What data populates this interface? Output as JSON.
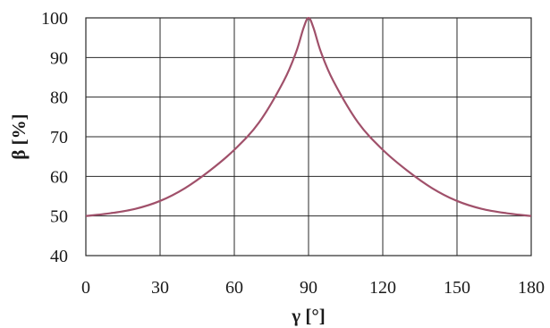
{
  "chart_data": {
    "type": "line",
    "title": "",
    "xlabel": "γ [°]",
    "ylabel": "β [%]",
    "xlim": [
      0,
      180
    ],
    "ylim": [
      40,
      100
    ],
    "xticks": [
      0,
      30,
      60,
      90,
      120,
      150,
      180
    ],
    "yticks": [
      40,
      50,
      60,
      70,
      80,
      90,
      100
    ],
    "grid": true,
    "legend": "none",
    "series": [
      {
        "color": "#a0506a",
        "x": [
          0,
          10,
          20,
          30,
          40,
          50,
          60,
          70,
          80,
          85,
          88,
          90,
          92,
          95,
          100,
          110,
          120,
          130,
          140,
          150,
          160,
          170,
          180
        ],
        "y": [
          50,
          50.7,
          51.8,
          53.8,
          57.0,
          61.4,
          66.7,
          73.6,
          84.1,
          91.4,
          97.5,
          100,
          97.5,
          91.4,
          84.1,
          73.6,
          66.7,
          61.4,
          57.0,
          53.8,
          51.8,
          50.7,
          50
        ]
      }
    ]
  }
}
